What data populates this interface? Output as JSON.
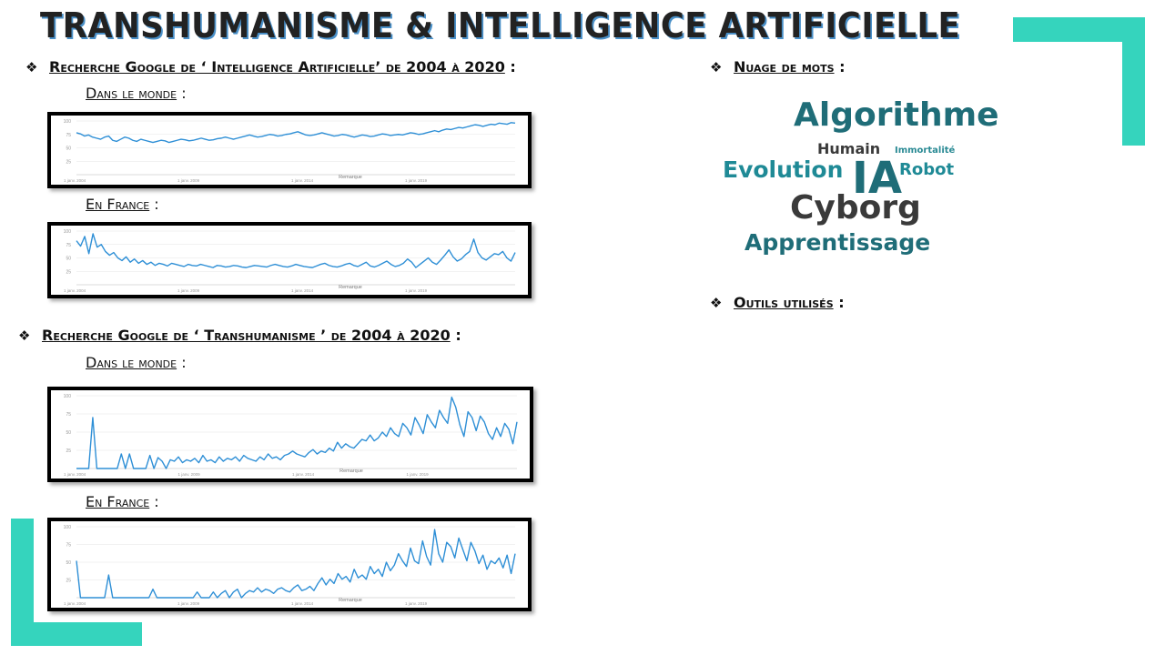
{
  "title": "TRANSHUMANISME &  INTELLIGENCE ARTIFICIELLE",
  "colors": {
    "accent": "#35d4bd",
    "line": "#2e8fd6",
    "wordTeal": "#1f6d78",
    "wordDark": "#3a3a3a"
  },
  "sections": {
    "ia": {
      "bullet": "❖",
      "heading": "Recherche Google de  ‘ Intelligence Artificielle’  de 2004 à 2020",
      "colon": " :",
      "world_label": "Dans le monde",
      "france_label": "En France",
      "sub_colon": " :"
    },
    "trans": {
      "bullet": "❖",
      "heading": "Recherche Google de  ‘ Transhumanisme ’  de 2004 à 2020",
      "colon": " :",
      "world_label": "Dans le monde",
      "france_label": "En France",
      "sub_colon": " :"
    },
    "cloud": {
      "bullet": "❖",
      "heading": "Nuage de mots",
      "colon": " :"
    },
    "tools": {
      "bullet": "❖",
      "heading": "Outils utilisés",
      "colon": " :"
    }
  },
  "word_cloud": {
    "words": [
      "Algorithme",
      "Humain",
      "Immortalité",
      "Evolution",
      "IA",
      "Robot",
      "Cyborg",
      "Apprentissage"
    ]
  },
  "chart_data": [
    {
      "type": "line",
      "ylim": [
        0,
        100
      ],
      "yticks": [
        "100",
        "75",
        "50",
        "25"
      ],
      "xticks": [
        "1 janv. 2004",
        "1 janv. 2009",
        "1 janv. 2014",
        "1 janv. 2019"
      ],
      "annotation": "Remarque",
      "values": [
        78,
        76,
        72,
        74,
        70,
        68,
        66,
        70,
        72,
        64,
        62,
        66,
        70,
        68,
        64,
        62,
        66,
        64,
        62,
        60,
        62,
        64,
        63,
        60,
        62,
        64,
        66,
        65,
        63,
        64,
        66,
        68,
        66,
        64,
        65,
        67,
        68,
        70,
        68,
        66,
        68,
        70,
        72,
        74,
        72,
        70,
        71,
        73,
        75,
        74,
        72,
        73,
        75,
        76,
        78,
        80,
        77,
        74,
        73,
        74,
        76,
        78,
        76,
        74,
        72,
        73,
        75,
        74,
        72,
        70,
        72,
        74,
        73,
        71,
        72,
        74,
        76,
        75,
        73,
        74,
        75,
        74,
        76,
        78,
        77,
        75,
        76,
        78,
        80,
        82,
        80,
        83,
        85,
        84,
        86,
        88,
        87,
        89,
        91,
        93,
        92,
        90,
        92,
        94,
        93,
        96,
        95,
        94,
        97,
        96
      ]
    },
    {
      "type": "line",
      "ylim": [
        0,
        100
      ],
      "yticks": [
        "100",
        "75",
        "50",
        "25"
      ],
      "xticks": [
        "1 janv. 2004",
        "1 janv. 2009",
        "1 janv. 2014",
        "1 janv. 2019"
      ],
      "annotation": "Remarque",
      "values": [
        82,
        72,
        90,
        58,
        95,
        70,
        75,
        62,
        55,
        60,
        50,
        45,
        52,
        42,
        48,
        40,
        45,
        38,
        42,
        36,
        40,
        38,
        35,
        40,
        38,
        36,
        34,
        38,
        36,
        35,
        38,
        36,
        34,
        32,
        36,
        35,
        33,
        34,
        36,
        35,
        33,
        32,
        34,
        36,
        35,
        34,
        33,
        36,
        38,
        36,
        34,
        33,
        35,
        38,
        36,
        34,
        33,
        32,
        35,
        38,
        40,
        36,
        34,
        33,
        35,
        38,
        40,
        36,
        34,
        38,
        42,
        35,
        33,
        36,
        40,
        44,
        38,
        34,
        36,
        40,
        48,
        42,
        32,
        38,
        44,
        50,
        42,
        38,
        46,
        55,
        65,
        52,
        44,
        48,
        56,
        62,
        85,
        60,
        50,
        46,
        52,
        58,
        56,
        62,
        50,
        44,
        60
      ]
    },
    {
      "type": "line",
      "ylim": [
        0,
        100
      ],
      "yticks": [
        "100",
        "75",
        "50",
        "25"
      ],
      "xticks": [
        "1 janv. 2004",
        "1 janv. 2009",
        "1 janv. 2014",
        "1 janv. 2019"
      ],
      "annotation": "Remarque",
      "values": [
        0,
        0,
        0,
        0,
        70,
        0,
        0,
        0,
        0,
        0,
        0,
        20,
        0,
        20,
        0,
        0,
        0,
        0,
        18,
        0,
        15,
        10,
        0,
        12,
        10,
        16,
        8,
        12,
        10,
        14,
        8,
        18,
        10,
        12,
        8,
        16,
        10,
        14,
        12,
        16,
        10,
        18,
        14,
        12,
        10,
        16,
        12,
        20,
        14,
        16,
        12,
        18,
        20,
        24,
        20,
        18,
        16,
        22,
        26,
        20,
        24,
        22,
        28,
        24,
        36,
        28,
        34,
        30,
        28,
        34,
        40,
        38,
        46,
        38,
        42,
        50,
        44,
        56,
        48,
        44,
        62,
        56,
        46,
        70,
        60,
        48,
        74,
        64,
        56,
        80,
        70,
        62,
        98,
        84,
        60,
        44,
        78,
        70,
        52,
        72,
        64,
        48,
        40,
        56,
        44,
        62,
        54,
        34,
        64
      ]
    },
    {
      "type": "line",
      "ylim": [
        0,
        100
      ],
      "yticks": [
        "100",
        "75",
        "50",
        "25"
      ],
      "xticks": [
        "1 janv. 2004",
        "1 janv. 2009",
        "1 janv. 2014",
        "1 janv. 2019"
      ],
      "annotation": "Remarque",
      "values": [
        52,
        0,
        0,
        0,
        0,
        0,
        0,
        0,
        32,
        0,
        0,
        0,
        0,
        0,
        0,
        0,
        0,
        0,
        0,
        12,
        0,
        0,
        0,
        0,
        0,
        0,
        0,
        0,
        0,
        0,
        8,
        0,
        0,
        0,
        8,
        0,
        6,
        10,
        0,
        8,
        12,
        0,
        6,
        10,
        8,
        14,
        8,
        12,
        10,
        6,
        12,
        14,
        10,
        8,
        14,
        18,
        10,
        12,
        16,
        10,
        20,
        28,
        18,
        26,
        20,
        34,
        26,
        30,
        22,
        40,
        28,
        32,
        26,
        44,
        34,
        40,
        30,
        50,
        38,
        46,
        62,
        52,
        44,
        70,
        52,
        48,
        80,
        58,
        46,
        96,
        62,
        50,
        78,
        72,
        56,
        84,
        68,
        52,
        78,
        66,
        48,
        60,
        40,
        52,
        48,
        56,
        42,
        60,
        34,
        62
      ]
    }
  ]
}
